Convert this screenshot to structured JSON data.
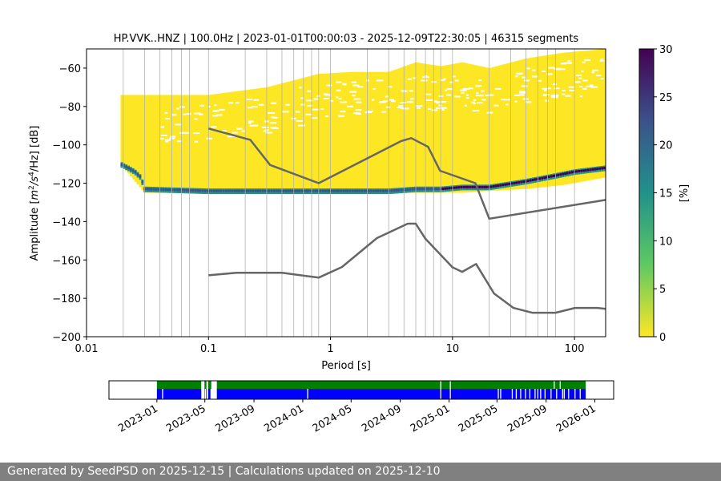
{
  "chart_data": [
    {
      "type": "heatmap",
      "title": "HP.VVK..HNZ | 100.0Hz | 2023-01-01T00:00:03 - 2025-12-09T22:30:05 | 46315 segments",
      "xlabel": "Period [s]",
      "ylabel_parts": [
        "Amplitude [",
        "m",
        "2",
        "/s",
        "4",
        "/Hz] [dB]"
      ],
      "xscale": "log",
      "xlim": [
        0.01,
        180
      ],
      "ylim": [
        -200,
        -50
      ],
      "x_ticks": [
        {
          "value": 0.01,
          "label": "0.01"
        },
        {
          "value": 0.1,
          "label": "0.1"
        },
        {
          "value": 1,
          "label": "1"
        },
        {
          "value": 10,
          "label": "10"
        },
        {
          "value": 100,
          "label": "100"
        }
      ],
      "y_ticks": [
        {
          "value": -60,
          "label": "−60"
        },
        {
          "value": -80,
          "label": "−80"
        },
        {
          "value": -100,
          "label": "−100"
        },
        {
          "value": -120,
          "label": "−120"
        },
        {
          "value": -140,
          "label": "−140"
        },
        {
          "value": -160,
          "label": "−160"
        },
        {
          "value": -180,
          "label": "−180"
        },
        {
          "value": -200,
          "label": "−200"
        }
      ],
      "grid_periods": [
        0.02,
        0.03,
        0.04,
        0.05,
        0.06,
        0.07,
        0.1,
        0.2,
        0.3,
        0.4,
        0.5,
        0.6,
        0.7,
        0.8,
        1,
        2,
        3,
        4,
        5,
        6,
        7,
        8,
        10,
        20,
        30,
        40,
        50,
        60,
        70,
        100
      ],
      "colorbar": {
        "label": "[%]",
        "min": 0,
        "max": 30,
        "ticks": [
          {
            "value": 0,
            "label": "0"
          },
          {
            "value": 5,
            "label": "5"
          },
          {
            "value": 10,
            "label": "10"
          },
          {
            "value": 15,
            "label": "15"
          },
          {
            "value": 20,
            "label": "20"
          },
          {
            "value": 25,
            "label": "25"
          },
          {
            "value": 30,
            "label": "30"
          }
        ],
        "colormap": [
          "#fde725",
          "#5ec962",
          "#21918c",
          "#3b528b",
          "#440154"
        ]
      },
      "density_envelope": {
        "periods": [
          0.019,
          0.03,
          0.1,
          0.3,
          0.8,
          1.5,
          3,
          5,
          8,
          12,
          20,
          40,
          80,
          180
        ],
        "upper_db": [
          -74,
          -74,
          -74,
          -70,
          -63,
          -62,
          -62,
          -57,
          -59,
          -57,
          -60,
          -55,
          -52,
          -50
        ],
        "lower_db": [
          -110,
          -125,
          -125,
          -125,
          -125,
          -125,
          -125,
          -125,
          -125,
          -125,
          -124,
          -123,
          -121,
          -117
        ]
      },
      "mode_curve": {
        "periods": [
          0.019,
          0.022,
          0.025,
          0.028,
          0.03,
          0.1,
          0.3,
          1,
          3,
          5,
          8,
          12,
          15,
          20,
          40,
          70,
          100,
          180
        ],
        "db": [
          -110,
          -112,
          -114,
          -117,
          -123,
          -124,
          -124,
          -124,
          -124,
          -123,
          -123,
          -122,
          -122,
          -122,
          -119,
          -116,
          -114,
          -112
        ]
      },
      "noise_models": [
        {
          "periods": [
            0.1,
            0.22,
            0.32,
            0.8,
            3.8,
            4.6,
            6.3,
            7.9,
            15.4,
            20,
            180
          ],
          "db": [
            -91.5,
            -97.4,
            -110.5,
            -120,
            -98,
            -96.5,
            -101,
            -113.5,
            -120,
            -138.5,
            -128.7
          ]
        },
        {
          "periods": [
            0.1,
            0.17,
            0.4,
            0.8,
            1.24,
            2.4,
            4.3,
            5,
            6,
            10,
            12,
            15.6,
            21.9,
            31.6,
            45,
            70,
            101,
            154,
            180
          ],
          "db": [
            -168,
            -166.7,
            -166.7,
            -169.2,
            -163.7,
            -148.6,
            -141.1,
            -141.1,
            -149,
            -163.8,
            -166.2,
            -162.1,
            -177.5,
            -185,
            -187.5,
            -187.5,
            -185,
            -185,
            -185.5
          ]
        }
      ]
    },
    {
      "type": "timeline",
      "x_ticks": [
        "2023-01",
        "2023-05",
        "2023-09",
        "2024-01",
        "2024-05",
        "2024-09",
        "2025-01",
        "2025-05",
        "2025-09",
        "2026-01"
      ],
      "xlim": [
        "2022-09-03",
        "2026-02-17"
      ],
      "data_span": [
        "2023-01-01",
        "2025-12-09"
      ],
      "gaps": [
        [
          "2023-04-22",
          "2023-04-30"
        ],
        [
          "2023-05-05",
          "2023-05-09"
        ],
        [
          "2023-05-17",
          "2023-05-31"
        ]
      ],
      "blue_breaks": [
        "2023-01-14",
        "2023-05-01",
        "2023-05-15",
        "2024-01-12",
        "2024-12-10",
        "2025-01-03",
        "2025-05-03",
        "2025-05-09",
        "2025-06-07",
        "2025-06-17",
        "2025-06-28",
        "2025-07-10",
        "2025-07-21",
        "2025-08-03",
        "2025-08-10",
        "2025-08-17",
        "2025-08-28",
        "2025-09-12",
        "2025-09-26",
        "2025-10-11",
        "2025-10-15",
        "2025-10-26",
        "2025-11-11",
        "2025-11-24"
      ],
      "green_breaks": [
        "2024-12-10",
        "2025-01-03",
        "2025-09-20",
        "2025-10-05"
      ],
      "colors": {
        "green": "#008000",
        "blue": "#0000ff"
      }
    }
  ],
  "footer": {
    "text": "Generated by SeedPSD on 2025-12-15 | Calculations updated on 2025-12-10"
  }
}
